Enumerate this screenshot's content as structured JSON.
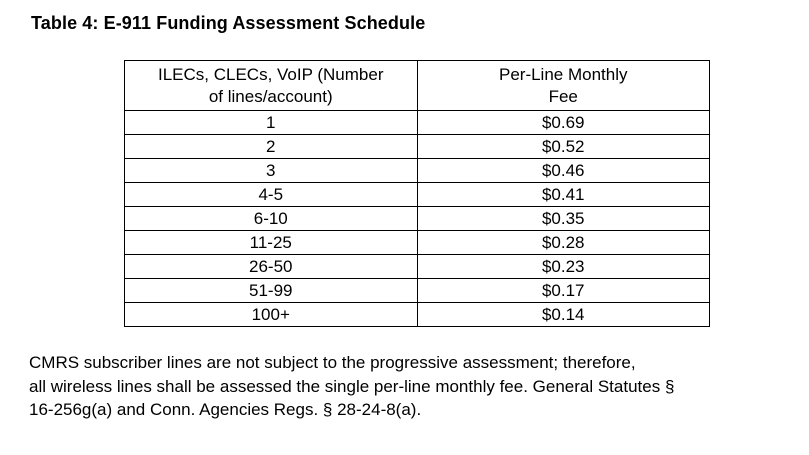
{
  "page": {
    "title": "Table 4: E-911 Funding Assessment Schedule",
    "table": {
      "header": [
        {
          "line1": "ILECs, CLECs, VoIP (Number",
          "line2": "of lines/account)"
        },
        {
          "line1": "Per-Line Monthly",
          "line2": "Fee"
        }
      ],
      "rows": [
        [
          "1",
          "$0.69"
        ],
        [
          "2",
          "$0.52"
        ],
        [
          "3",
          "$0.46"
        ],
        [
          "4-5",
          "$0.41"
        ],
        [
          "6-10",
          "$0.35"
        ],
        [
          "11-25",
          "$0.28"
        ],
        [
          "26-50",
          "$0.23"
        ],
        [
          "51-99",
          "$0.17"
        ],
        [
          "100+",
          "$0.14"
        ]
      ]
    },
    "footnote": "CMRS subscriber lines are not subject to the progressive assessment; therefore,\nall wireless lines shall be assessed the single per-line monthly fee. General Statutes §\n16-256g(a) and Conn. Agencies Regs. § 28-24-8(a).",
    "colors": {
      "text": "#000000",
      "background": "#ffffff",
      "border": "#000000"
    }
  }
}
